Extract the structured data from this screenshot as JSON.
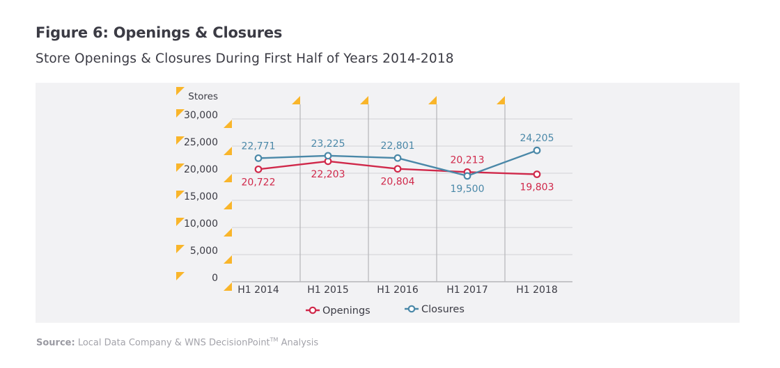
{
  "figure": {
    "title": "Figure 6: Openings & Closures",
    "subtitle": "Store Openings & Closures During First Half of Years 2014-2018"
  },
  "source": {
    "label": "Source:",
    "text": " Local Data Company & WNS DecisionPoint",
    "trademark": "TM",
    "suffix": " Analysis"
  },
  "colors": {
    "openings": "#d0284a",
    "closures": "#4a88a8",
    "accent_triangle": "#f9b52a",
    "panel_bg": "#f2f2f4",
    "grid": "#d9d9dc",
    "axis": "#b5b5b8"
  },
  "chart_data": {
    "type": "line",
    "title": "Store Openings & Closures During First Half of Years 2014-2018",
    "xlabel": "",
    "ylabel": "Stores",
    "categories": [
      "H1 2014",
      "H1 2015",
      "H1 2016",
      "H1 2017",
      "H1 2018"
    ],
    "ylim": [
      0,
      30000
    ],
    "yticks": [
      0,
      5000,
      10000,
      15000,
      20000,
      25000,
      30000
    ],
    "ytick_labels": [
      "0",
      "5,000",
      "10,000",
      "15,000",
      "20,000",
      "25,000",
      "30,000"
    ],
    "grid": true,
    "legend_position": "bottom",
    "series": [
      {
        "name": "Openings",
        "color": "#d0284a",
        "values": [
          20722,
          22203,
          20804,
          20213,
          19803
        ],
        "labels": [
          "20,722",
          "22,203",
          "20,804",
          "20,213",
          "19,803"
        ],
        "label_positions": [
          "below",
          "below",
          "below",
          "above",
          "below"
        ]
      },
      {
        "name": "Closures",
        "color": "#4a88a8",
        "values": [
          22771,
          23225,
          22801,
          19500,
          24205
        ],
        "labels": [
          "22,771",
          "23,225",
          "22,801",
          "19,500",
          "24,205"
        ],
        "label_positions": [
          "above",
          "above",
          "above",
          "below",
          "above"
        ]
      }
    ]
  }
}
